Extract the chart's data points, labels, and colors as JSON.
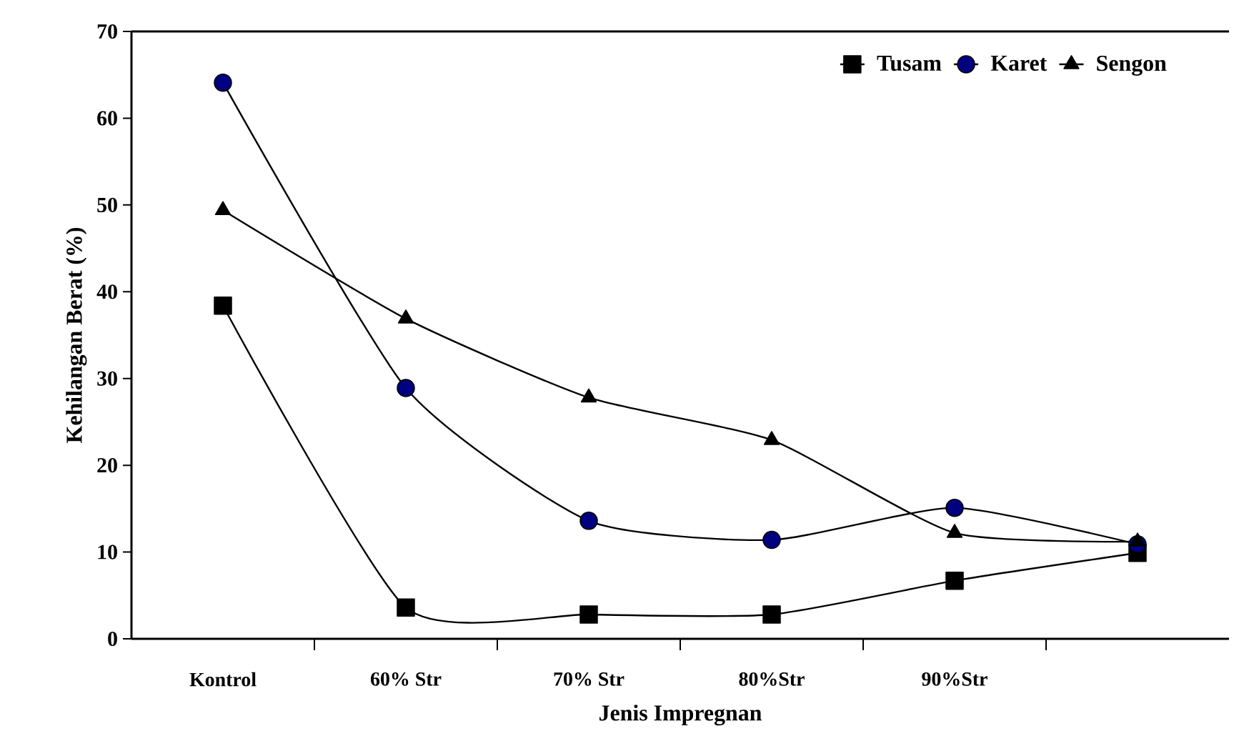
{
  "chart_data": {
    "type": "line",
    "xlabel": "Jenis Impregnan",
    "ylabel": "Kehilangan Berat (%)",
    "categories": [
      "Kontrol",
      "60% Str",
      "70% Str",
      "80%Str",
      "90%Str",
      null
    ],
    "series": [
      {
        "name": "Tusam",
        "color": "#000000",
        "marker": "square",
        "values": [
          38.4,
          3.6,
          2.8,
          2.8,
          6.7,
          9.9
        ]
      },
      {
        "name": "Karet",
        "color": "#000080",
        "marker": "circle",
        "values": [
          64.1,
          28.9,
          13.6,
          11.4,
          15.1,
          10.9
        ]
      },
      {
        "name": "Sengon",
        "color": "#000000",
        "marker": "triangle",
        "values": [
          49.4,
          36.9,
          27.8,
          22.9,
          12.2,
          11.2
        ]
      }
    ],
    "ylim": [
      0,
      70
    ],
    "yticks": [
      0,
      10,
      20,
      30,
      40,
      50,
      60,
      70
    ],
    "grid": false,
    "legend": "top right",
    "line_style": "solid"
  }
}
